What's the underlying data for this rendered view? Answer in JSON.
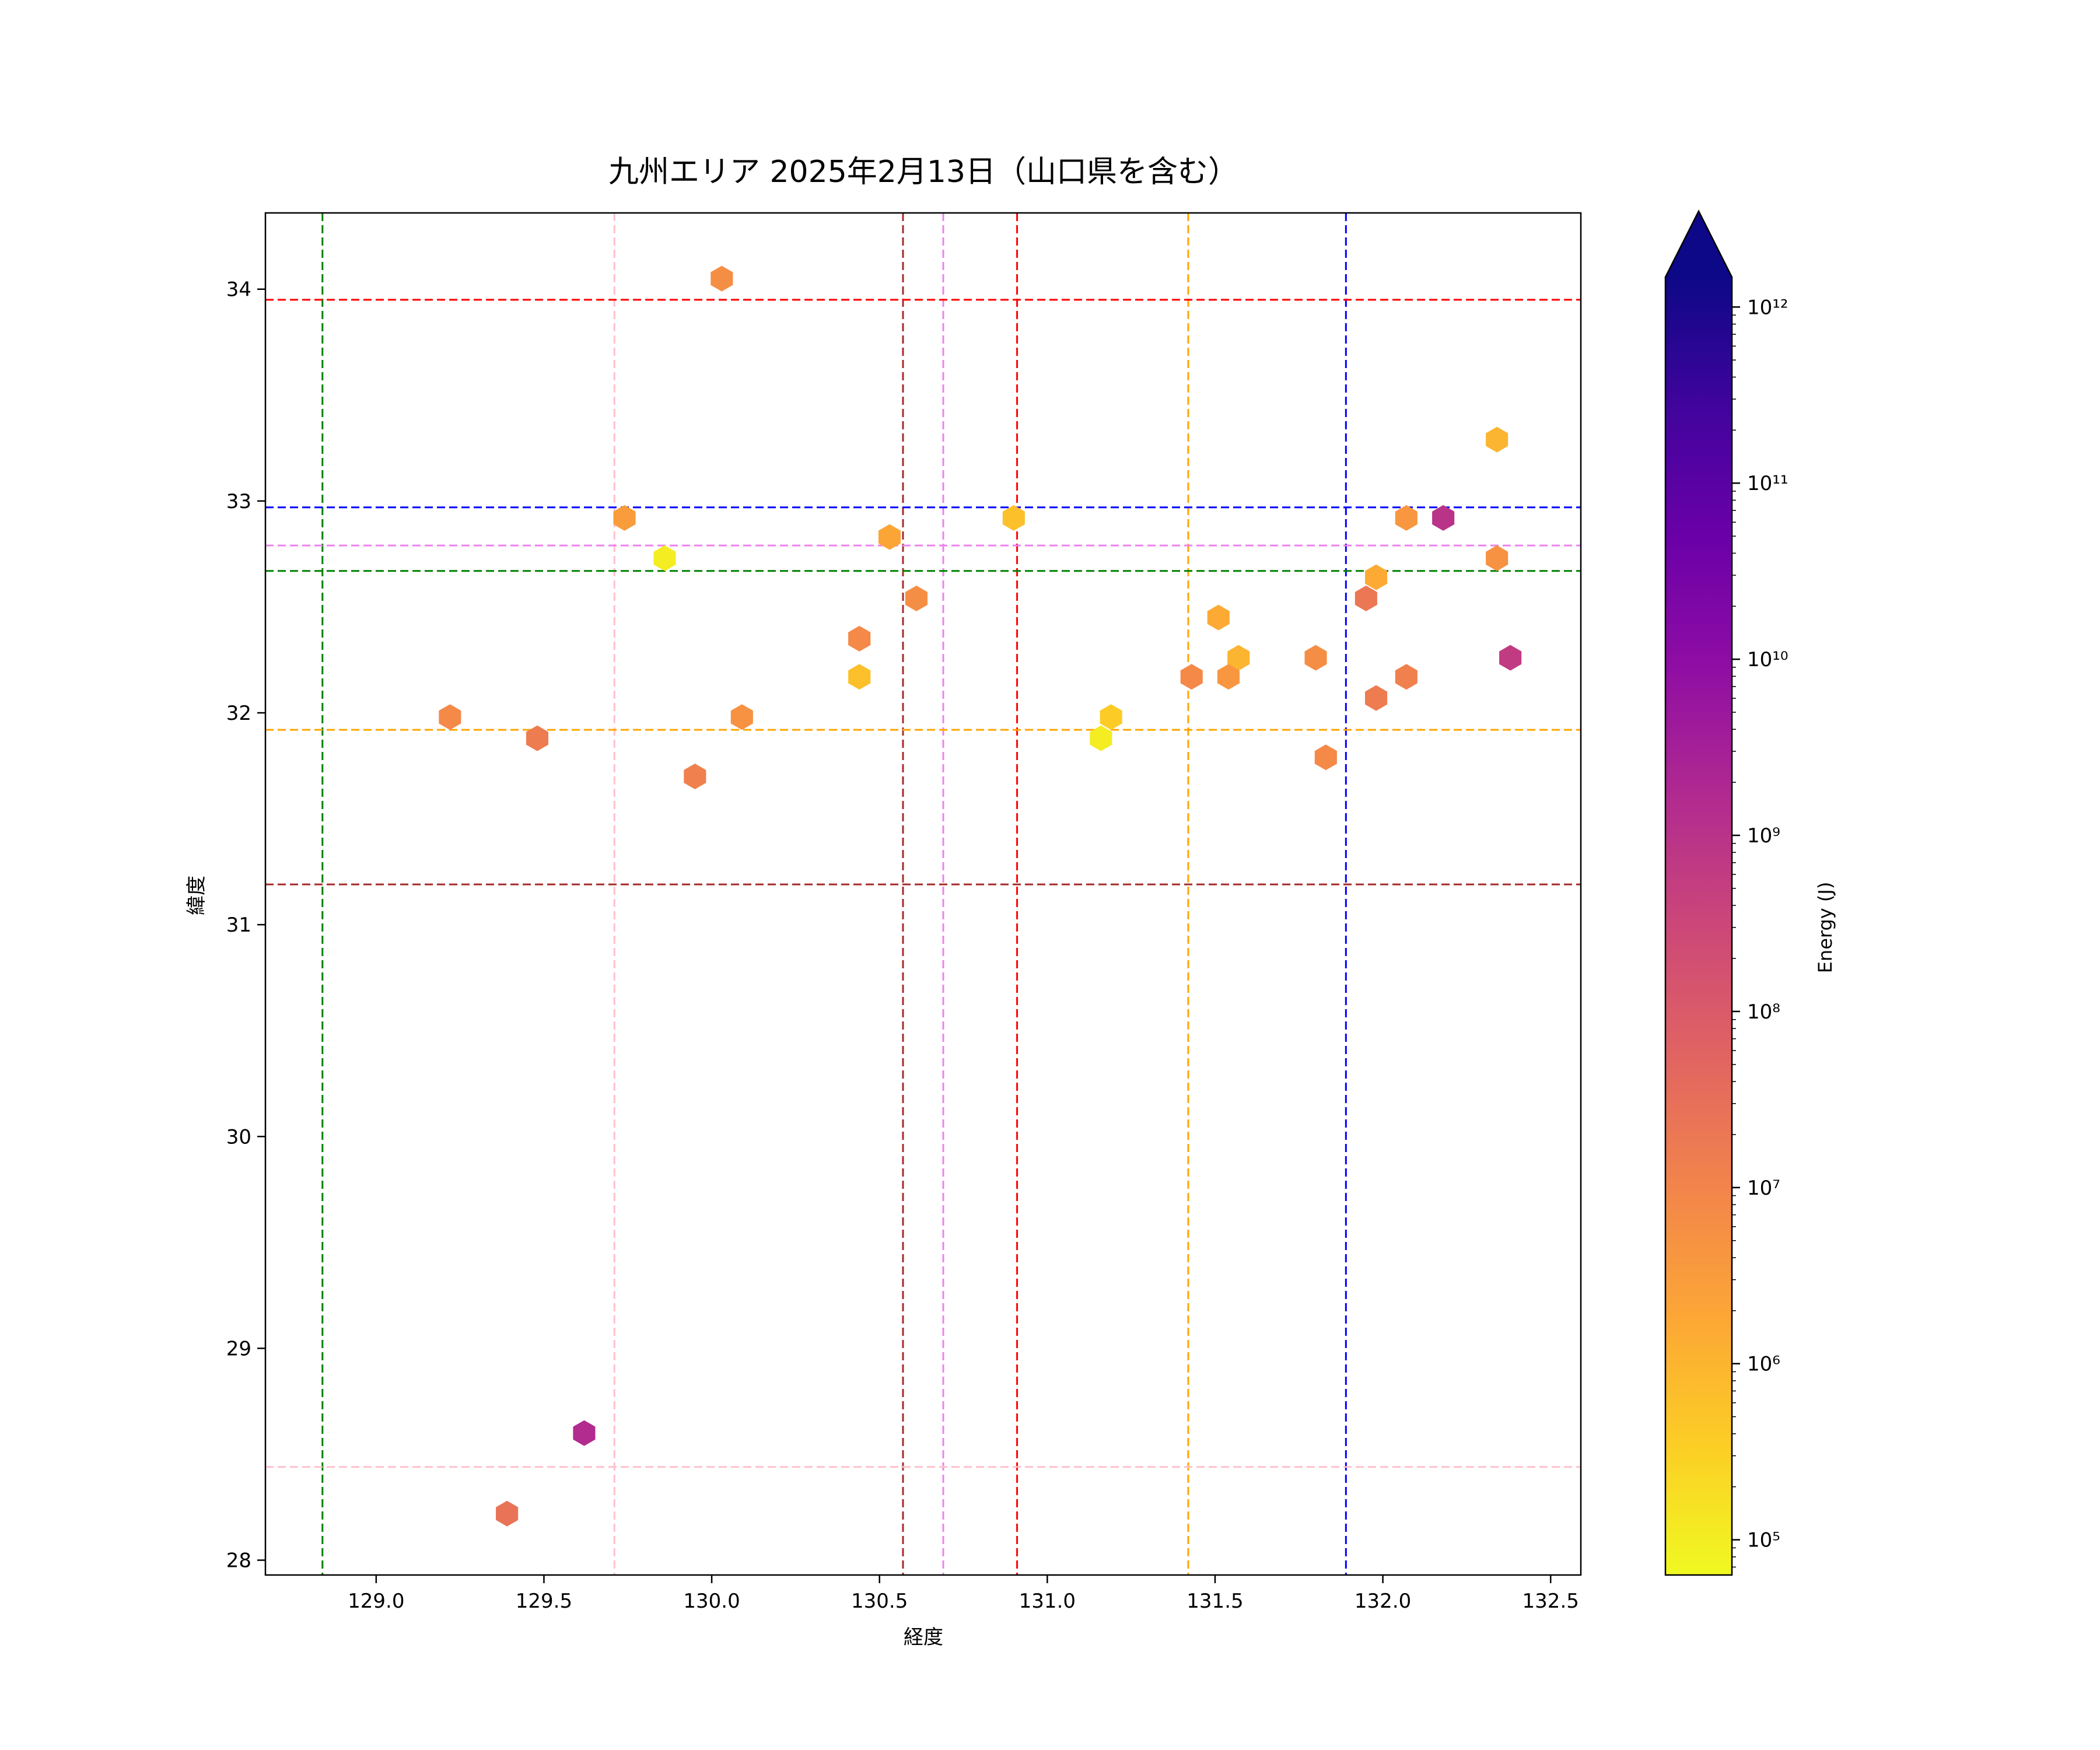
{
  "chart_data": {
    "type": "hexbin",
    "title": "九州エリア 2025年2月13日（山口県を含む）",
    "xlabel": "経度",
    "ylabel": "緯度",
    "xlim": [
      128.67,
      132.59
    ],
    "ylim": [
      27.93,
      34.36
    ],
    "xticks": [
      "129.0",
      "129.5",
      "130.0",
      "130.5",
      "131.0",
      "131.5",
      "132.0",
      "132.5"
    ],
    "yticks": [
      "28",
      "29",
      "30",
      "31",
      "32",
      "33",
      "34"
    ],
    "colorbar": {
      "label": "Energy (J)",
      "scale": "log",
      "colormap": "plasma_r",
      "range_exponents": [
        4.8,
        12.17
      ],
      "ticks": [
        "10⁵",
        "10⁶",
        "10⁷",
        "10⁸",
        "10⁹",
        "10¹⁰",
        "10¹¹",
        "10¹²"
      ],
      "extend": "max"
    },
    "vlines": [
      {
        "x": 128.84,
        "color": "#008000"
      },
      {
        "x": 129.71,
        "color": "#ffc0cb"
      },
      {
        "x": 130.57,
        "color": "#a52a2a"
      },
      {
        "x": 130.69,
        "color": "#ee82ee"
      },
      {
        "x": 130.91,
        "color": "#ff0000"
      },
      {
        "x": 131.42,
        "color": "#ffa500"
      },
      {
        "x": 131.89,
        "color": "#0000ff"
      }
    ],
    "hlines": [
      {
        "y": 33.95,
        "color": "#ff0000"
      },
      {
        "y": 32.97,
        "color": "#0000ff"
      },
      {
        "y": 32.79,
        "color": "#ee82ee"
      },
      {
        "y": 32.67,
        "color": "#008000"
      },
      {
        "y": 31.92,
        "color": "#ffa500"
      },
      {
        "y": 31.19,
        "color": "#a52a2a"
      },
      {
        "y": 28.44,
        "color": "#ffc0cb"
      }
    ],
    "points": [
      {
        "lon": 130.03,
        "lat": 34.05,
        "energy_exp": 6.8
      },
      {
        "lon": 132.34,
        "lat": 33.29,
        "energy_exp": 6.0
      },
      {
        "lon": 129.74,
        "lat": 32.92,
        "energy_exp": 6.5
      },
      {
        "lon": 129.86,
        "lat": 32.73,
        "energy_exp": 5.0
      },
      {
        "lon": 130.53,
        "lat": 32.83,
        "energy_exp": 6.3
      },
      {
        "lon": 130.61,
        "lat": 32.54,
        "energy_exp": 6.8
      },
      {
        "lon": 130.9,
        "lat": 32.92,
        "energy_exp": 5.8
      },
      {
        "lon": 132.07,
        "lat": 32.92,
        "energy_exp": 6.6
      },
      {
        "lon": 132.18,
        "lat": 32.92,
        "energy_exp": 9.0
      },
      {
        "lon": 132.34,
        "lat": 32.73,
        "energy_exp": 6.7
      },
      {
        "lon": 131.98,
        "lat": 32.64,
        "energy_exp": 6.2
      },
      {
        "lon": 131.95,
        "lat": 32.54,
        "energy_exp": 7.3
      },
      {
        "lon": 130.44,
        "lat": 32.35,
        "energy_exp": 6.9
      },
      {
        "lon": 130.44,
        "lat": 32.17,
        "energy_exp": 5.8
      },
      {
        "lon": 131.51,
        "lat": 32.45,
        "energy_exp": 6.2
      },
      {
        "lon": 131.57,
        "lat": 32.26,
        "energy_exp": 6.0
      },
      {
        "lon": 131.8,
        "lat": 32.26,
        "energy_exp": 6.8
      },
      {
        "lon": 132.38,
        "lat": 32.26,
        "energy_exp": 8.8
      },
      {
        "lon": 131.43,
        "lat": 32.17,
        "energy_exp": 6.9
      },
      {
        "lon": 131.54,
        "lat": 32.17,
        "energy_exp": 6.6
      },
      {
        "lon": 132.07,
        "lat": 32.17,
        "energy_exp": 7.1
      },
      {
        "lon": 131.98,
        "lat": 32.07,
        "energy_exp": 7.2
      },
      {
        "lon": 129.22,
        "lat": 31.98,
        "energy_exp": 6.9
      },
      {
        "lon": 130.09,
        "lat": 31.98,
        "energy_exp": 6.7
      },
      {
        "lon": 131.19,
        "lat": 31.98,
        "energy_exp": 5.6
      },
      {
        "lon": 129.48,
        "lat": 31.88,
        "energy_exp": 7.2
      },
      {
        "lon": 131.16,
        "lat": 31.88,
        "energy_exp": 5.0
      },
      {
        "lon": 131.83,
        "lat": 31.79,
        "energy_exp": 6.9
      },
      {
        "lon": 129.95,
        "lat": 31.7,
        "energy_exp": 7.1
      },
      {
        "lon": 129.62,
        "lat": 28.6,
        "energy_exp": 9.2
      },
      {
        "lon": 129.39,
        "lat": 28.22,
        "energy_exp": 7.4
      }
    ]
  }
}
